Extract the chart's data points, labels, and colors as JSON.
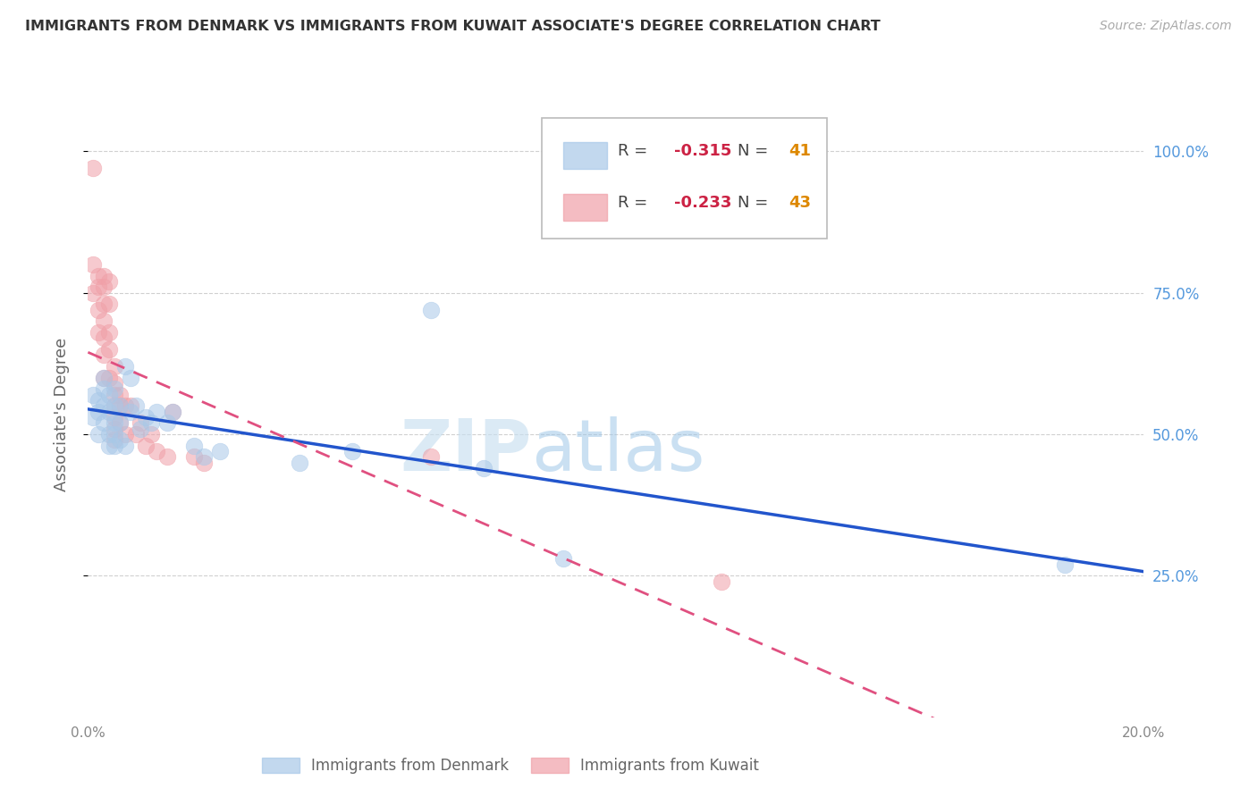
{
  "title": "IMMIGRANTS FROM DENMARK VS IMMIGRANTS FROM KUWAIT ASSOCIATE'S DEGREE CORRELATION CHART",
  "source": "Source: ZipAtlas.com",
  "ylabel": "Associate's Degree",
  "x_min": 0.0,
  "x_max": 0.2,
  "y_min": 0.0,
  "y_max": 1.07,
  "denmark_R": -0.315,
  "denmark_N": 41,
  "kuwait_R": -0.233,
  "kuwait_N": 43,
  "denmark_color": "#a8c8e8",
  "kuwait_color": "#f0a0a8",
  "denmark_line_color": "#2255cc",
  "kuwait_line_color": "#e05080",
  "denmark_scatter_x": [
    0.001,
    0.001,
    0.002,
    0.002,
    0.002,
    0.003,
    0.003,
    0.003,
    0.003,
    0.004,
    0.004,
    0.004,
    0.004,
    0.005,
    0.005,
    0.005,
    0.005,
    0.005,
    0.006,
    0.006,
    0.006,
    0.007,
    0.007,
    0.008,
    0.008,
    0.009,
    0.01,
    0.011,
    0.012,
    0.013,
    0.015,
    0.016,
    0.02,
    0.022,
    0.025,
    0.04,
    0.05,
    0.065,
    0.075,
    0.09,
    0.185
  ],
  "denmark_scatter_y": [
    0.53,
    0.57,
    0.56,
    0.5,
    0.54,
    0.55,
    0.52,
    0.6,
    0.58,
    0.57,
    0.54,
    0.5,
    0.48,
    0.58,
    0.55,
    0.52,
    0.5,
    0.48,
    0.55,
    0.52,
    0.49,
    0.62,
    0.48,
    0.6,
    0.54,
    0.55,
    0.51,
    0.53,
    0.52,
    0.54,
    0.52,
    0.54,
    0.48,
    0.46,
    0.47,
    0.45,
    0.47,
    0.72,
    0.44,
    0.28,
    0.27
  ],
  "kuwait_scatter_x": [
    0.001,
    0.001,
    0.001,
    0.002,
    0.002,
    0.002,
    0.002,
    0.003,
    0.003,
    0.003,
    0.003,
    0.003,
    0.003,
    0.003,
    0.004,
    0.004,
    0.004,
    0.004,
    0.004,
    0.005,
    0.005,
    0.005,
    0.005,
    0.005,
    0.005,
    0.005,
    0.006,
    0.006,
    0.006,
    0.007,
    0.007,
    0.008,
    0.009,
    0.01,
    0.011,
    0.012,
    0.013,
    0.015,
    0.016,
    0.02,
    0.022,
    0.065,
    0.12
  ],
  "kuwait_scatter_y": [
    0.97,
    0.8,
    0.75,
    0.78,
    0.76,
    0.72,
    0.68,
    0.78,
    0.76,
    0.73,
    0.7,
    0.67,
    0.64,
    0.6,
    0.77,
    0.73,
    0.68,
    0.65,
    0.6,
    0.62,
    0.59,
    0.57,
    0.55,
    0.53,
    0.51,
    0.49,
    0.57,
    0.55,
    0.52,
    0.55,
    0.5,
    0.55,
    0.5,
    0.52,
    0.48,
    0.5,
    0.47,
    0.46,
    0.54,
    0.46,
    0.45,
    0.46,
    0.24
  ],
  "watermark_zip": "ZIP",
  "watermark_atlas": "atlas",
  "background_color": "#ffffff",
  "grid_color": "#d0d0d0",
  "title_color": "#333333",
  "right_axis_color": "#5599dd",
  "legend_R_color": "#cc2244",
  "legend_N_color": "#dd8800",
  "legend_text_color": "#444444"
}
